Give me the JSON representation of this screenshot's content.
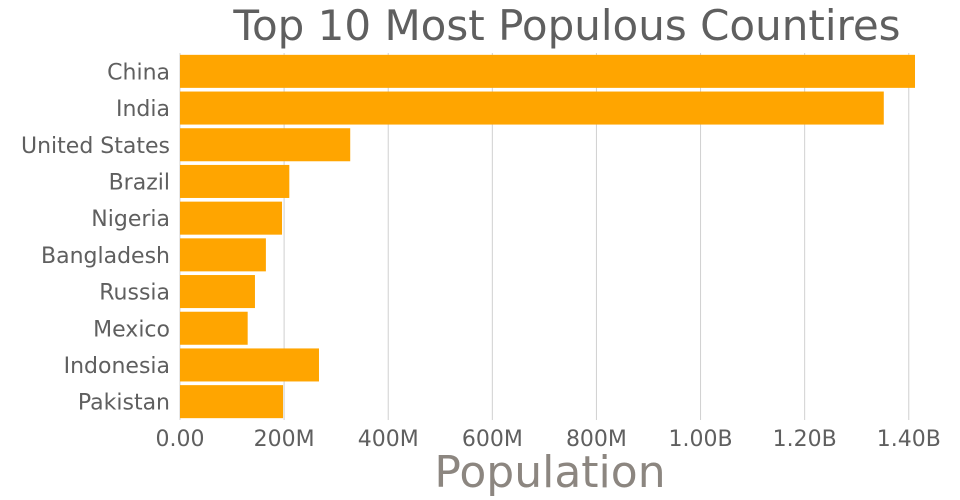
{
  "chart_data": {
    "type": "bar",
    "orientation": "horizontal",
    "title": "Top 10 Most Populous Countires",
    "xlabel": "Population",
    "ylabel": "",
    "categories": [
      "China",
      "India",
      "United States",
      "Brazil",
      "Nigeria",
      "Bangladesh",
      "Russia",
      "Mexico",
      "Indonesia",
      "Pakistan"
    ],
    "values": [
      1412000000,
      1352000000,
      327000000,
      210000000,
      196000000,
      165000000,
      144000000,
      130000000,
      267000000,
      198000000
    ],
    "xlim": [
      0,
      1460000000
    ],
    "x_ticks": [
      0,
      200000000,
      400000000,
      600000000,
      800000000,
      1000000000,
      1200000000,
      1400000000
    ],
    "x_tick_labels": [
      "0.00",
      "200M",
      "400M",
      "600M",
      "800M",
      "1.00B",
      "1.20B",
      "1.40B"
    ],
    "bar_color": "#ffa500",
    "grid": "vertical",
    "legend": "none"
  }
}
